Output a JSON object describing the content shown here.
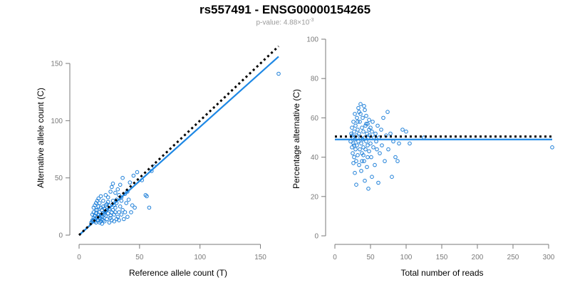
{
  "header": {
    "title": "rs557491 - ENSG00000154265",
    "pvalue_prefix": "p-value: 4.88×10",
    "pvalue_exponent": "-3"
  },
  "colors": {
    "points": "#1e7fd8",
    "fit_line": "#1e88e5",
    "reference_line": "#000000",
    "axis": "#7a7a7a"
  },
  "chart_data": [
    {
      "type": "scatter",
      "title": "",
      "xlabel": "Reference allele count (T)",
      "ylabel": "Alternative allele count (C)",
      "xlim": [
        0,
        165
      ],
      "ylim": [
        0,
        155
      ],
      "xticks": [
        0,
        50,
        100,
        150
      ],
      "yticks": [
        0,
        50,
        100,
        150
      ],
      "grid": false,
      "legend": "none",
      "lines": [
        {
          "style": "solid",
          "color": "#1e88e5",
          "points": [
            [
              0,
              0
            ],
            [
              165,
              156
            ]
          ]
        },
        {
          "style": "dotted",
          "color": "#000000",
          "points": [
            [
              0,
              0
            ],
            [
              165,
              165
            ]
          ]
        }
      ],
      "points": [
        [
          10,
          11
        ],
        [
          11,
          13
        ],
        [
          12,
          15
        ],
        [
          11,
          18
        ],
        [
          12,
          20
        ],
        [
          13,
          12
        ],
        [
          14,
          11
        ],
        [
          13,
          14
        ],
        [
          15,
          16
        ],
        [
          14,
          19
        ],
        [
          15,
          22
        ],
        [
          16,
          13
        ],
        [
          17,
          15
        ],
        [
          16,
          18
        ],
        [
          18,
          12
        ],
        [
          17,
          20
        ],
        [
          19,
          22
        ],
        [
          18,
          24
        ],
        [
          20,
          13
        ],
        [
          19,
          16
        ],
        [
          21,
          18
        ],
        [
          22,
          21
        ],
        [
          20,
          25
        ],
        [
          23,
          14
        ],
        [
          22,
          17
        ],
        [
          24,
          19
        ],
        [
          25,
          23
        ],
        [
          23,
          27
        ],
        [
          26,
          15
        ],
        [
          27,
          20
        ],
        [
          25,
          26
        ],
        [
          28,
          22
        ],
        [
          29,
          18
        ],
        [
          30,
          24
        ],
        [
          31,
          28
        ],
        [
          32,
          16
        ],
        [
          33,
          20
        ],
        [
          34,
          25
        ],
        [
          35,
          30
        ],
        [
          36,
          22
        ],
        [
          12,
          24
        ],
        [
          13,
          26
        ],
        [
          14,
          28
        ],
        [
          15,
          30
        ],
        [
          16,
          32
        ],
        [
          18,
          34
        ],
        [
          20,
          30
        ],
        [
          22,
          35
        ],
        [
          24,
          33
        ],
        [
          26,
          38
        ],
        [
          27,
          42
        ],
        [
          28,
          45
        ],
        [
          30,
          37
        ],
        [
          32,
          40
        ],
        [
          34,
          44
        ],
        [
          36,
          50
        ],
        [
          38,
          36
        ],
        [
          40,
          38
        ],
        [
          42,
          46
        ],
        [
          45,
          52
        ],
        [
          48,
          55
        ],
        [
          52,
          48
        ],
        [
          55,
          35
        ],
        [
          56,
          34
        ],
        [
          58,
          24
        ],
        [
          60,
          56
        ],
        [
          62,
          60
        ],
        [
          37,
          14
        ],
        [
          40,
          16
        ],
        [
          43,
          20
        ],
        [
          29,
          12
        ],
        [
          31,
          14
        ],
        [
          33,
          13
        ],
        [
          35,
          18
        ],
        [
          38,
          20
        ],
        [
          11,
          12
        ],
        [
          12,
          13
        ],
        [
          13,
          17
        ],
        [
          14,
          22
        ],
        [
          16,
          25
        ],
        [
          17,
          28
        ],
        [
          19,
          14
        ],
        [
          21,
          12
        ],
        [
          22,
          26
        ],
        [
          24,
          29
        ],
        [
          26,
          17
        ],
        [
          28,
          30
        ],
        [
          30,
          20
        ],
        [
          17,
          11
        ],
        [
          19,
          10
        ],
        [
          21,
          23
        ],
        [
          25,
          11
        ],
        [
          27,
          13
        ],
        [
          29,
          26
        ],
        [
          31,
          31
        ],
        [
          33,
          35
        ],
        [
          35,
          33
        ],
        [
          39,
          28
        ],
        [
          41,
          31
        ],
        [
          44,
          26
        ],
        [
          46,
          24
        ],
        [
          15,
          13
        ],
        [
          18,
          17
        ],
        [
          20,
          19
        ],
        [
          23,
          22
        ],
        [
          165,
          141
        ]
      ]
    },
    {
      "type": "scatter",
      "title": "",
      "xlabel": "Total number of reads",
      "ylabel": "Percentage alternative (C)",
      "xlim": [
        0,
        305
      ],
      "ylim": [
        0,
        100
      ],
      "xticks": [
        0,
        50,
        100,
        150,
        200,
        250,
        300
      ],
      "yticks": [
        0,
        20,
        40,
        60,
        80,
        100
      ],
      "grid": false,
      "legend": "none",
      "lines": [
        {
          "style": "solid",
          "color": "#1e88e5",
          "points": [
            [
              0,
              49
            ],
            [
              305,
              49
            ]
          ]
        },
        {
          "style": "dotted",
          "color": "#000000",
          "points": [
            [
              0,
              50.5
            ],
            [
              305,
              50.5
            ]
          ]
        }
      ],
      "points": [
        [
          22,
          48
        ],
        [
          23,
          52
        ],
        [
          24,
          45
        ],
        [
          24,
          55
        ],
        [
          25,
          50
        ],
        [
          25,
          42
        ],
        [
          26,
          58
        ],
        [
          26,
          47
        ],
        [
          27,
          53
        ],
        [
          27,
          40
        ],
        [
          28,
          62
        ],
        [
          28,
          49
        ],
        [
          29,
          44
        ],
        [
          29,
          56
        ],
        [
          30,
          51
        ],
        [
          30,
          38
        ],
        [
          31,
          60
        ],
        [
          31,
          46
        ],
        [
          32,
          54
        ],
        [
          32,
          41
        ],
        [
          33,
          65
        ],
        [
          33,
          48
        ],
        [
          34,
          52
        ],
        [
          34,
          36
        ],
        [
          35,
          58
        ],
        [
          35,
          44
        ],
        [
          36,
          50
        ],
        [
          36,
          62
        ],
        [
          37,
          47
        ],
        [
          37,
          33
        ],
        [
          38,
          55
        ],
        [
          38,
          42
        ],
        [
          39,
          49
        ],
        [
          39,
          60
        ],
        [
          40,
          45
        ],
        [
          40,
          53
        ],
        [
          41,
          38
        ],
        [
          41,
          66
        ],
        [
          42,
          50
        ],
        [
          42,
          28
        ],
        [
          43,
          56
        ],
        [
          43,
          44
        ],
        [
          44,
          48
        ],
        [
          44,
          61
        ],
        [
          45,
          52
        ],
        [
          45,
          35
        ],
        [
          46,
          46
        ],
        [
          46,
          57
        ],
        [
          47,
          24
        ],
        [
          47,
          50
        ],
        [
          48,
          43
        ],
        [
          48,
          59
        ],
        [
          49,
          51
        ],
        [
          50,
          47
        ],
        [
          50,
          55
        ],
        [
          51,
          40
        ],
        [
          52,
          53
        ],
        [
          52,
          30
        ],
        [
          53,
          58
        ],
        [
          54,
          45
        ],
        [
          55,
          50
        ],
        [
          56,
          36
        ],
        [
          57,
          52
        ],
        [
          58,
          48
        ],
        [
          59,
          44
        ],
        [
          60,
          56
        ],
        [
          61,
          27
        ],
        [
          62,
          50
        ],
        [
          63,
          42
        ],
        [
          65,
          54
        ],
        [
          66,
          46
        ],
        [
          68,
          60
        ],
        [
          70,
          38
        ],
        [
          72,
          51
        ],
        [
          74,
          63
        ],
        [
          75,
          44
        ],
        [
          78,
          52
        ],
        [
          80,
          30
        ],
        [
          82,
          48
        ],
        [
          85,
          40
        ],
        [
          88,
          38
        ],
        [
          90,
          47
        ],
        [
          95,
          54
        ],
        [
          100,
          53
        ],
        [
          105,
          47
        ],
        [
          125,
          50
        ],
        [
          30,
          26
        ],
        [
          32,
          58
        ],
        [
          34,
          63
        ],
        [
          36,
          67
        ],
        [
          38,
          38
        ],
        [
          40,
          41
        ],
        [
          42,
          64
        ],
        [
          44,
          57
        ],
        [
          46,
          40
        ],
        [
          48,
          54
        ],
        [
          28,
          32
        ],
        [
          26,
          37
        ],
        [
          24,
          51
        ],
        [
          27,
          46
        ],
        [
          305,
          45
        ]
      ]
    }
  ]
}
